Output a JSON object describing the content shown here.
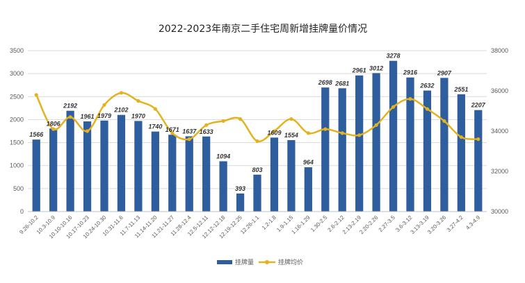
{
  "chart_data": {
    "type": "bar",
    "title": "2022-2023年南京二手住宅周新增挂牌量价情况",
    "categories": [
      "9.26-10.2",
      "10.3-10.9",
      "10.10-10.16",
      "10.17-10.23",
      "10.24-10.30",
      "10.31-11.6",
      "11.7-11.13",
      "11.14-11.20",
      "11.21-11.27",
      "11.28-12.4",
      "12.5-12.11",
      "12.12-12.18",
      "12.19-12.25",
      "12.26-1.1",
      "1.2-1.8",
      "1.9-1.15",
      "1.16-1.29",
      "1.30-2.5",
      "2.6-2.12",
      "2.13-2.19",
      "2.20-2.26",
      "2.27-3.5",
      "3.6-3.12",
      "3.13-3.19",
      "3.20-3.26",
      "3.27-4.2",
      "4.3-4.9"
    ],
    "series": [
      {
        "name": "挂牌量",
        "type": "bar",
        "axis": "left",
        "color": "#2E5E9E",
        "values": [
          1566,
          1806,
          2192,
          1961,
          1979,
          2102,
          1970,
          1740,
          1671,
          1637,
          1633,
          1094,
          393,
          803,
          1609,
          1554,
          964,
          2698,
          2681,
          2961,
          3012,
          3278,
          2916,
          2632,
          2907,
          2551,
          2207
        ]
      },
      {
        "name": "挂牌均价",
        "type": "line",
        "axis": "right",
        "color": "#E3B21E",
        "values": [
          35800,
          34100,
          34700,
          34000,
          35300,
          35900,
          35500,
          35100,
          33900,
          33600,
          34300,
          34500,
          34600,
          33500,
          34000,
          34600,
          33900,
          34100,
          33900,
          33800,
          34300,
          35200,
          35600,
          35100,
          34500,
          33700,
          33600
        ]
      }
    ],
    "y_left": {
      "min": 0,
      "max": 3500,
      "step": 500
    },
    "y_right": {
      "min": 30000,
      "max": 38000,
      "step": 2000
    },
    "grid": true,
    "legend": "bottom"
  }
}
